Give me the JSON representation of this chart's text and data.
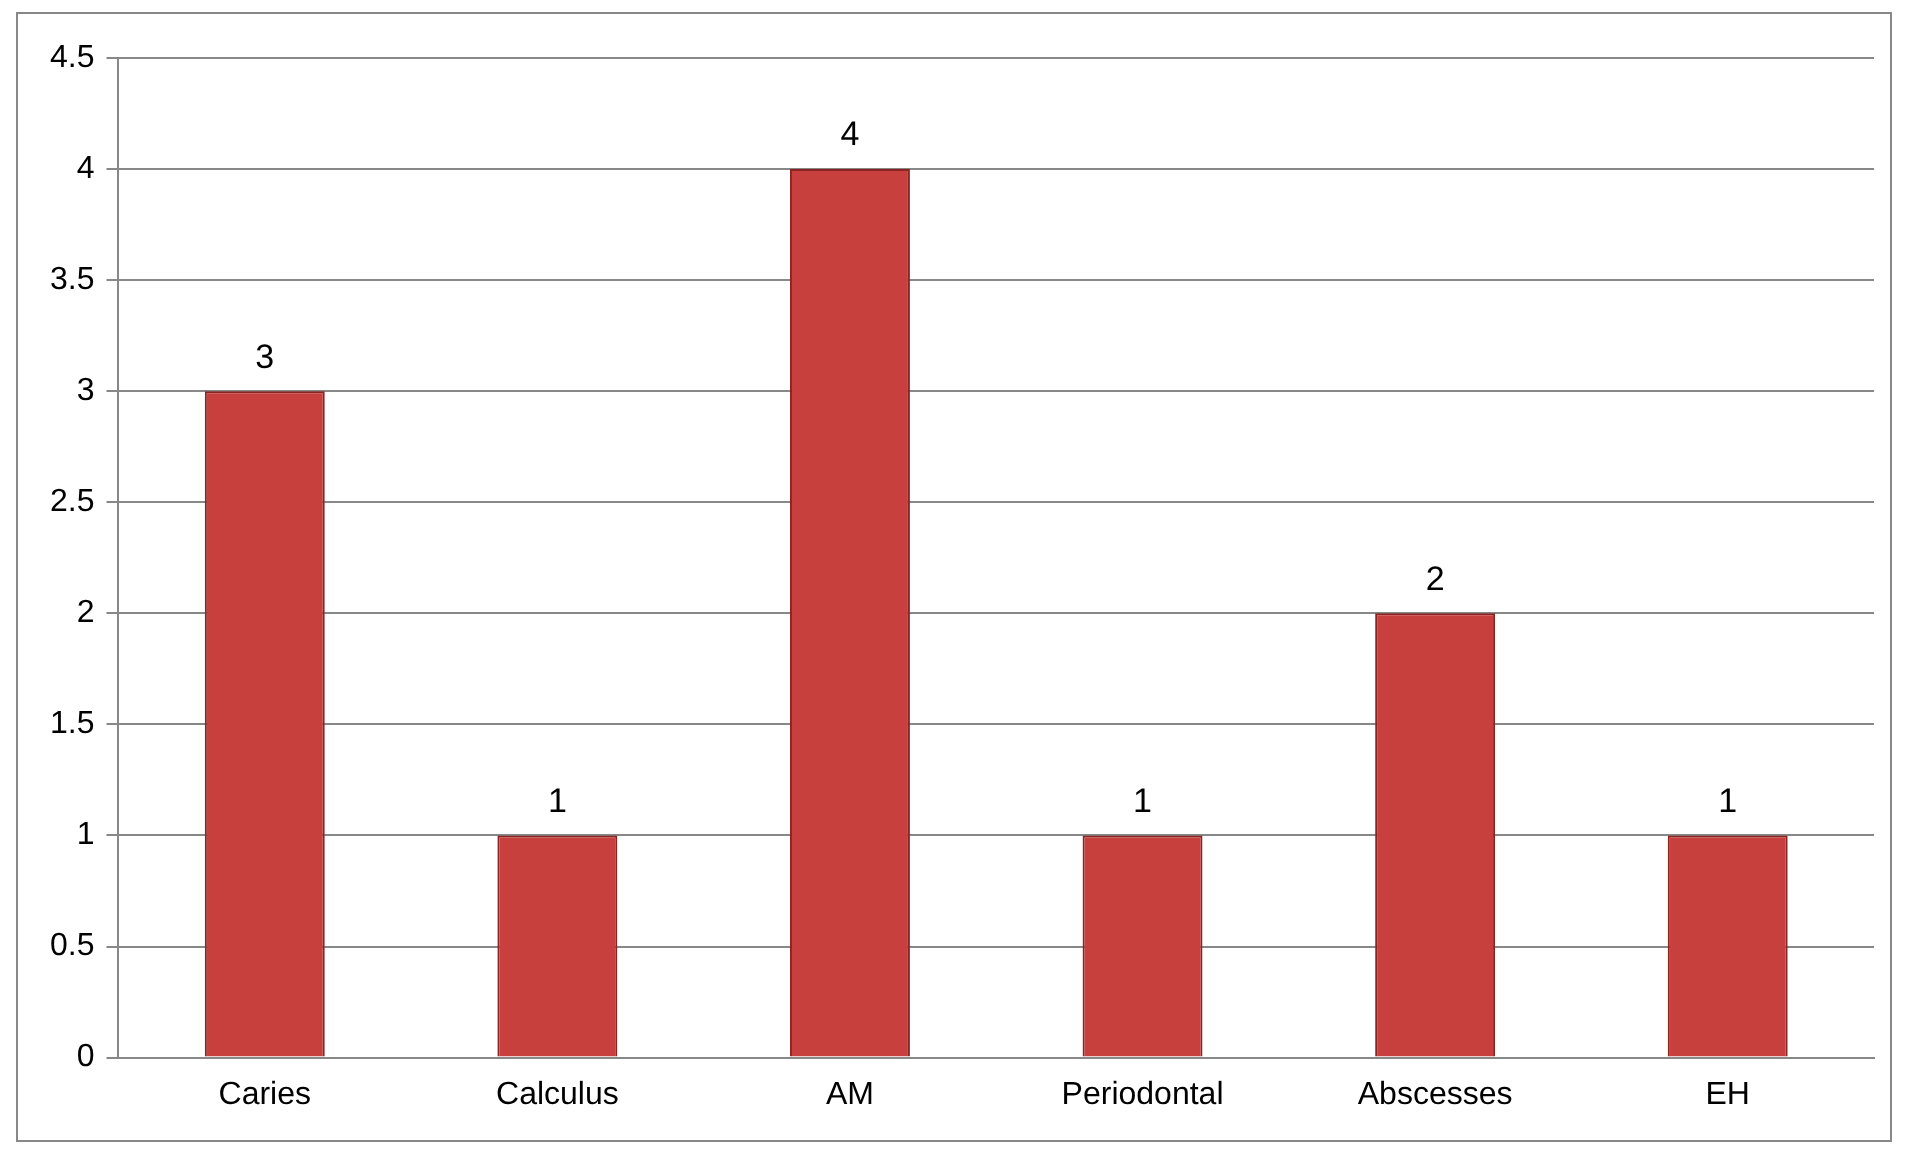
{
  "chart_data": {
    "type": "bar",
    "categories": [
      "Caries",
      "Calculus",
      "AM",
      "Periodontal",
      "Abscesses",
      "EH"
    ],
    "values": [
      3,
      1,
      4,
      1,
      2,
      1
    ],
    "color": "#c8403d",
    "ylim": [
      0,
      4.5
    ],
    "yticks": [
      0,
      0.5,
      1,
      1.5,
      2,
      2.5,
      3,
      3.5,
      4,
      4.5
    ],
    "grid": "y",
    "data_labels": true,
    "legend": false
  }
}
